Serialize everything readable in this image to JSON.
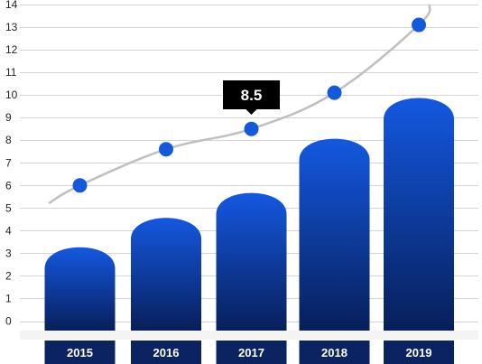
{
  "chart_data": {
    "type": "bar",
    "categories": [
      "2015",
      "2016",
      "2017",
      "2018",
      "2019"
    ],
    "bar_values": [
      3.5,
      4.8,
      5.9,
      8.3,
      10.1
    ],
    "line_values": [
      6.0,
      7.6,
      8.5,
      10.1,
      13.1
    ],
    "yticks": [
      "0",
      "1",
      "2",
      "3",
      "4",
      "5",
      "6",
      "7",
      "8",
      "9",
      "10",
      "11",
      "12",
      "13",
      "14"
    ],
    "ylim": [
      0,
      14
    ],
    "grid": true,
    "tooltip": {
      "category": "2017",
      "label": "8.5"
    },
    "colors": {
      "bar_top": "#1458e0",
      "bar_bottom": "#071f5a",
      "point": "#1259dc",
      "line": "#bfbfbf",
      "label_bg": "#0b2360",
      "tooltip_bg": "#000000"
    }
  }
}
